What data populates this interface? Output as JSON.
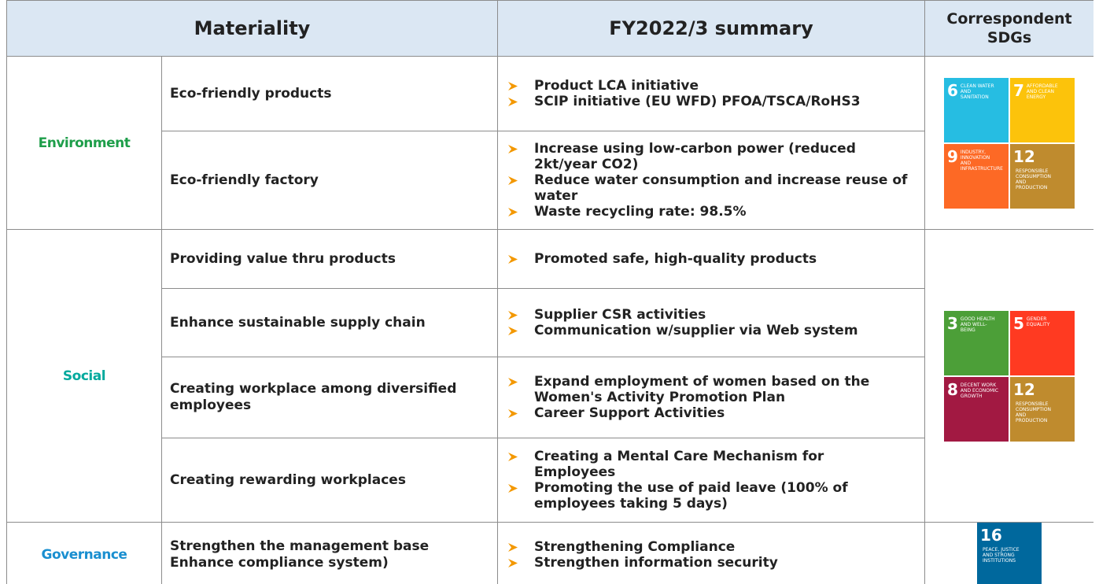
{
  "header": {
    "materiality": "Materiality",
    "summary": "FY2022/3 summary",
    "sdgs": "Correspondent SDGs"
  },
  "groups": [
    {
      "name": "Environment",
      "color": "#1e9e4a",
      "items": [
        {
          "topic": "Eco-friendly  products",
          "bullets": [
            "Product LCA initiative",
            "SCIP initiative (EU WFD) PFOA/TSCA/RoHS3"
          ]
        },
        {
          "topic": "Eco-friendly  factory",
          "bullets": [
            "Increase using low-carbon power (reduced 2kt/year CO2)",
            "Reduce water consumption and increase reuse of water",
            "Waste recycling rate: 98.5%"
          ]
        }
      ],
      "sdgs": [
        {
          "number": "6",
          "label": "Clean water and sanitation",
          "color": "#26bde2"
        },
        {
          "number": "7",
          "label": "Affordable and clean energy",
          "color": "#fcc30b"
        },
        {
          "number": "9",
          "label": "Industry, innovation and infrastructure",
          "color": "#fd6925"
        },
        {
          "number": "12",
          "label": "Responsible consumption and production",
          "color": "#bf8b2e"
        }
      ]
    },
    {
      "name": "Social",
      "color": "#00a99d",
      "items": [
        {
          "topic": "Providing value thru products",
          "bullets": [
            "Promoted safe, high-quality products"
          ]
        },
        {
          "topic": "Enhance sustainable supply chain",
          "bullets": [
            "Supplier CSR activities",
            "Communication w/supplier via Web system"
          ]
        },
        {
          "topic": "Creating workplace among diversified employees",
          "bullets": [
            "Expand employment of women based on the Women's Activity Promotion Plan",
            "Career Support Activities"
          ]
        },
        {
          "topic": "Creating rewarding workplaces",
          "bullets": [
            "Creating a Mental Care Mechanism for Employees",
            "Promoting the use of paid leave (100% of employees taking 5 days)"
          ]
        }
      ],
      "sdgs": [
        {
          "number": "3",
          "label": "Good health and well-being",
          "color": "#4c9f38"
        },
        {
          "number": "5",
          "label": "Gender equality",
          "color": "#ff3a21"
        },
        {
          "number": "8",
          "label": "Decent work and economic growth",
          "color": "#a21942"
        },
        {
          "number": "12",
          "label": "Responsible consumption and production",
          "color": "#bf8b2e"
        }
      ]
    },
    {
      "name": "Governance",
      "color": "#1a8fd0",
      "items": [
        {
          "topic": "Strengthen the management base Enhance compliance system)",
          "bullets": [
            "Strengthening Compliance",
            "Strengthen information security"
          ]
        }
      ],
      "sdgs": [
        {
          "number": "16",
          "label": "Peace, justice and strong institutions",
          "color": "#00689d"
        }
      ]
    }
  ]
}
